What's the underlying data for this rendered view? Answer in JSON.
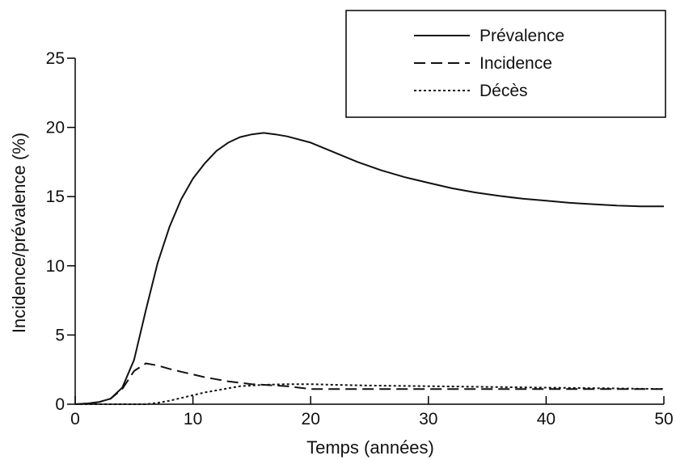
{
  "chart_data": {
    "type": "line",
    "xlabel": "Temps (années)",
    "ylabel": "Incidence/prévalence (%)",
    "xlim": [
      0,
      50
    ],
    "ylim": [
      0,
      25
    ],
    "x_ticks": [
      0,
      10,
      20,
      30,
      40,
      50
    ],
    "y_ticks": [
      0,
      5,
      10,
      15,
      20,
      25
    ],
    "grid": false,
    "legend_position": "top-right",
    "series": [
      {
        "name": "Prévalence",
        "line_style": "solid",
        "x": [
          0,
          1,
          2,
          3,
          4,
          5,
          6,
          7,
          8,
          9,
          10,
          11,
          12,
          13,
          14,
          15,
          16,
          17,
          18,
          20,
          22,
          24,
          26,
          28,
          30,
          32,
          34,
          36,
          38,
          40,
          42,
          44,
          46,
          48,
          50
        ],
        "y": [
          0.0,
          0.05,
          0.15,
          0.4,
          1.2,
          3.2,
          6.8,
          10.2,
          12.8,
          14.8,
          16.3,
          17.4,
          18.3,
          18.9,
          19.3,
          19.5,
          19.6,
          19.5,
          19.35,
          18.9,
          18.2,
          17.5,
          16.9,
          16.4,
          16.0,
          15.6,
          15.3,
          15.05,
          14.85,
          14.7,
          14.55,
          14.45,
          14.35,
          14.3,
          14.3
        ]
      },
      {
        "name": "Incidence",
        "line_style": "dashed",
        "x": [
          0,
          1,
          2,
          3,
          4,
          5,
          6,
          7,
          8,
          9,
          10,
          11,
          12,
          13,
          14,
          15,
          16,
          17,
          18,
          19,
          20,
          25,
          30,
          35,
          40,
          45,
          50
        ],
        "y": [
          0.0,
          0.05,
          0.15,
          0.4,
          1.1,
          2.4,
          2.95,
          2.8,
          2.55,
          2.35,
          2.15,
          1.95,
          1.8,
          1.65,
          1.55,
          1.45,
          1.4,
          1.35,
          1.3,
          1.2,
          1.1,
          1.1,
          1.1,
          1.1,
          1.1,
          1.1,
          1.1
        ]
      },
      {
        "name": "Décès",
        "line_style": "dotted",
        "x": [
          0,
          2,
          4,
          6,
          7,
          8,
          9,
          10,
          11,
          12,
          13,
          14,
          16,
          18,
          20,
          22,
          25,
          30,
          35,
          40,
          45,
          50
        ],
        "y": [
          0.0,
          0.0,
          0.0,
          0.0,
          0.1,
          0.25,
          0.45,
          0.65,
          0.85,
          1.0,
          1.15,
          1.3,
          1.4,
          1.45,
          1.45,
          1.4,
          1.35,
          1.3,
          1.25,
          1.2,
          1.15,
          1.1
        ]
      }
    ]
  }
}
